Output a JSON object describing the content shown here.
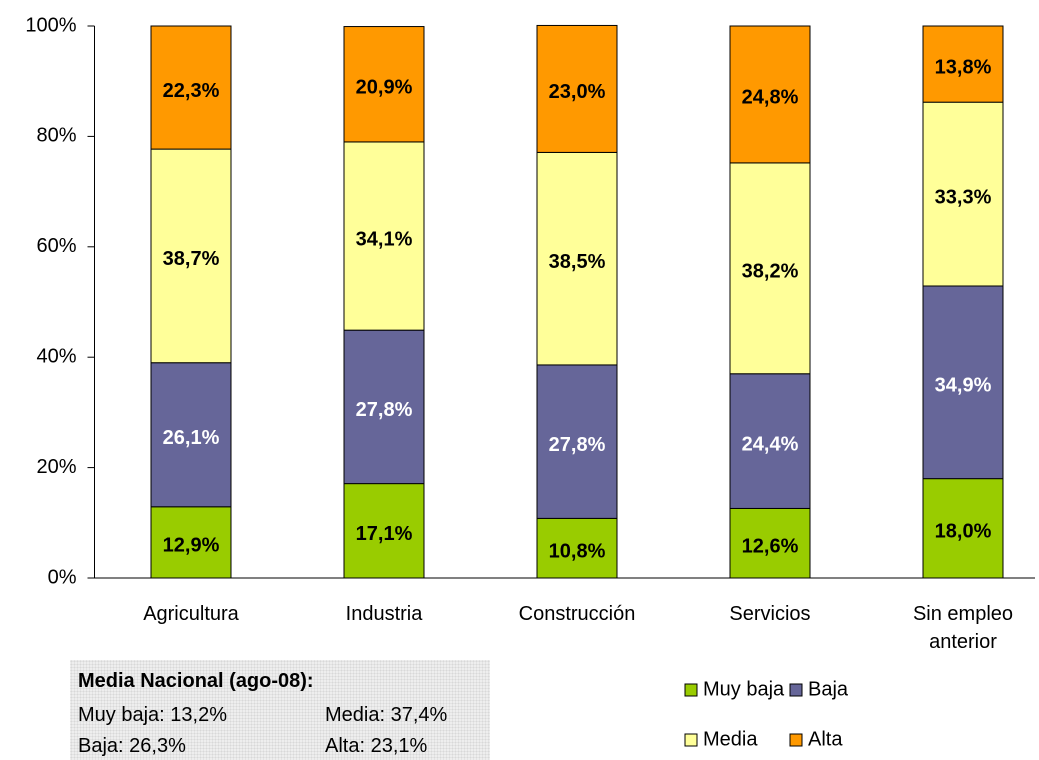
{
  "chart_data": {
    "type": "stacked_bar",
    "categories": [
      "Agricultura",
      "Industria",
      "Construcción",
      "Servicios",
      "Sin empleo anterior"
    ],
    "series": [
      {
        "name": "Muy baja",
        "color": "#99cc00",
        "values": [
          12.9,
          17.1,
          10.8,
          12.6,
          18.0
        ],
        "value_labels": [
          "12,9%",
          "17,1%",
          "10,8%",
          "12,6%",
          "18,0%"
        ]
      },
      {
        "name": "Baja",
        "color": "#666699",
        "values": [
          26.1,
          27.8,
          27.8,
          24.4,
          34.9
        ],
        "value_labels": [
          "26,1%",
          "27,8%",
          "27,8%",
          "24,4%",
          "34,9%"
        ]
      },
      {
        "name": "Media",
        "color": "#ffff99",
        "values": [
          38.7,
          34.1,
          38.5,
          38.2,
          33.3
        ],
        "value_labels": [
          "38,7%",
          "34,1%",
          "38,5%",
          "38,2%",
          "33,3%"
        ]
      },
      {
        "name": "Alta",
        "color": "#ff9900",
        "values": [
          22.3,
          20.9,
          23.0,
          24.8,
          13.8
        ],
        "value_labels": [
          "22,3%",
          "20,9%",
          "23,0%",
          "24,8%",
          "13,8%"
        ]
      }
    ],
    "ylim": [
      0,
      100
    ],
    "yticks": [
      {
        "value": 0,
        "label": "0%"
      },
      {
        "value": 20,
        "label": "20%"
      },
      {
        "value": 40,
        "label": "40%"
      },
      {
        "value": 60,
        "label": "60%"
      },
      {
        "value": 80,
        "label": "80%"
      },
      {
        "value": 100,
        "label": "100%"
      }
    ],
    "annotations": {
      "title": "Media Nacional (ago-08):",
      "lines": [
        "Muy baja: 13,2%",
        "Media: 37,4%",
        "Baja: 26,3%",
        "Alta: 23,1%"
      ]
    }
  }
}
